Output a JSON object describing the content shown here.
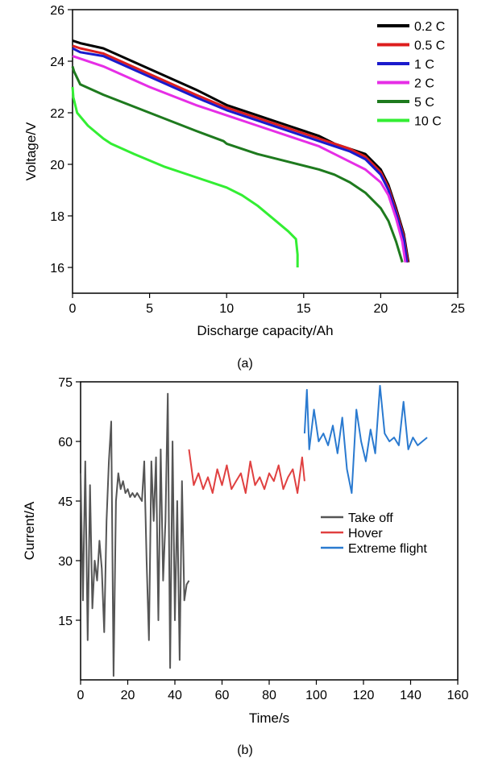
{
  "chart_data": [
    {
      "type": "line",
      "panel_label": "(a)",
      "title": "",
      "xlabel": "Discharge capacity/Ah",
      "ylabel": "Voltage/V",
      "xlim": [
        0,
        25
      ],
      "ylim": [
        15,
        26
      ],
      "xticks": [
        0,
        5,
        10,
        15,
        20,
        25
      ],
      "yticks": [
        16,
        18,
        20,
        22,
        24,
        26
      ],
      "grid": false,
      "legend_position": "top-right",
      "series": [
        {
          "name": "0.2 C",
          "color": "#000000",
          "x": [
            0,
            0.5,
            2,
            5,
            8,
            10,
            12,
            14,
            16,
            17,
            18,
            19,
            20,
            20.5,
            21,
            21.5,
            21.8
          ],
          "y": [
            24.8,
            24.7,
            24.5,
            23.7,
            22.9,
            22.3,
            21.9,
            21.5,
            21.1,
            20.8,
            20.6,
            20.4,
            19.8,
            19.2,
            18.3,
            17.3,
            16.2
          ]
        },
        {
          "name": "0.5 C",
          "color": "#dd1e1e",
          "x": [
            0,
            0.5,
            2,
            5,
            8,
            10,
            12,
            14,
            16,
            17,
            18,
            19,
            20,
            20.5,
            21,
            21.5,
            21.75
          ],
          "y": [
            24.6,
            24.5,
            24.3,
            23.5,
            22.7,
            22.2,
            21.8,
            21.4,
            21.0,
            20.8,
            20.6,
            20.3,
            19.7,
            19.1,
            18.2,
            17.2,
            16.2
          ]
        },
        {
          "name": "1 C",
          "color": "#1a1acc",
          "x": [
            0,
            0.5,
            2,
            5,
            8,
            10,
            12,
            14,
            16,
            17,
            18,
            19,
            20,
            20.5,
            21,
            21.5,
            21.7
          ],
          "y": [
            24.5,
            24.35,
            24.2,
            23.4,
            22.6,
            22.1,
            21.7,
            21.3,
            20.9,
            20.7,
            20.5,
            20.2,
            19.6,
            19.0,
            18.1,
            17.1,
            16.2
          ]
        },
        {
          "name": "2 C",
          "color": "#e62ee6",
          "x": [
            0,
            0.5,
            2,
            5,
            8,
            10,
            12,
            14,
            16,
            17,
            18,
            19,
            20,
            20.5,
            21,
            21.4,
            21.6
          ],
          "y": [
            24.2,
            24.1,
            23.8,
            23.0,
            22.3,
            21.9,
            21.5,
            21.1,
            20.7,
            20.4,
            20.1,
            19.8,
            19.3,
            18.8,
            17.9,
            17.0,
            16.2
          ]
        },
        {
          "name": "5 C",
          "color": "#1e7a1e",
          "x": [
            0,
            0.1,
            0.5,
            2,
            5,
            8,
            9.8,
            10,
            12,
            14,
            16,
            17,
            18,
            19,
            20,
            20.5,
            21,
            21.4
          ],
          "y": [
            23.8,
            23.6,
            23.1,
            22.7,
            22.0,
            21.3,
            20.9,
            20.8,
            20.4,
            20.1,
            19.8,
            19.6,
            19.3,
            18.9,
            18.3,
            17.8,
            17.0,
            16.2
          ]
        },
        {
          "name": "10 C",
          "color": "#33ee33",
          "x": [
            0,
            0.05,
            0.3,
            1,
            2,
            2.5,
            4,
            6,
            8,
            10,
            11,
            12,
            13,
            14,
            14.5,
            14.6,
            14.6
          ],
          "y": [
            23.0,
            22.6,
            22.0,
            21.5,
            21.0,
            20.8,
            20.4,
            19.9,
            19.5,
            19.1,
            18.8,
            18.4,
            17.9,
            17.4,
            17.1,
            16.5,
            16.0
          ]
        }
      ]
    },
    {
      "type": "line",
      "panel_label": "(b)",
      "title": "",
      "xlabel": "Time/s",
      "ylabel": "Current/A",
      "xlim": [
        0,
        160
      ],
      "ylim": [
        0,
        75
      ],
      "xticks": [
        0,
        20,
        40,
        60,
        80,
        100,
        120,
        140,
        160
      ],
      "yticks": [
        15,
        30,
        45,
        60,
        75
      ],
      "grid": false,
      "legend_position": "right",
      "series": [
        {
          "name": "Take off",
          "color": "#555555",
          "x": [
            0,
            1,
            2,
            3,
            4,
            5,
            6,
            7,
            8,
            9,
            10,
            11,
            12,
            13,
            14,
            15,
            16,
            17,
            18,
            19,
            20,
            21,
            22,
            23,
            24,
            25,
            26,
            27,
            28,
            29,
            30,
            31,
            32,
            33,
            34,
            35,
            36,
            37,
            38,
            39,
            40,
            41,
            42,
            43,
            44,
            45,
            46
          ],
          "y": [
            52,
            20,
            55,
            10,
            49,
            18,
            30,
            25,
            35,
            28,
            12,
            40,
            55,
            65,
            1,
            45,
            52,
            48,
            50,
            47,
            48,
            46,
            47,
            46,
            47,
            46,
            45,
            55,
            30,
            10,
            55,
            40,
            56,
            15,
            58,
            25,
            40,
            72,
            3,
            60,
            15,
            45,
            5,
            50,
            20,
            24,
            25
          ]
        },
        {
          "name": "Hover",
          "color": "#e04040",
          "x": [
            46,
            48,
            50,
            52,
            54,
            56,
            58,
            60,
            62,
            64,
            66,
            68,
            70,
            72,
            74,
            76,
            78,
            80,
            82,
            84,
            86,
            88,
            90,
            92,
            94,
            95
          ],
          "y": [
            58,
            49,
            52,
            48,
            51,
            47,
            53,
            49,
            54,
            48,
            50,
            52,
            47,
            55,
            49,
            51,
            48,
            52,
            50,
            54,
            48,
            51,
            53,
            47,
            56,
            50
          ]
        },
        {
          "name": "Extreme flight",
          "color": "#2a7ad0",
          "x": [
            95,
            96,
            97,
            99,
            101,
            103,
            105,
            107,
            109,
            111,
            113,
            115,
            117,
            119,
            121,
            123,
            125,
            127,
            129,
            131,
            133,
            135,
            137,
            139,
            141,
            143,
            145,
            147
          ],
          "y": [
            62,
            73,
            58,
            68,
            60,
            62,
            59,
            64,
            57,
            66,
            53,
            47,
            68,
            60,
            55,
            63,
            57,
            74,
            62,
            60,
            61,
            59,
            70,
            58,
            61,
            59,
            60,
            61
          ]
        }
      ]
    }
  ]
}
